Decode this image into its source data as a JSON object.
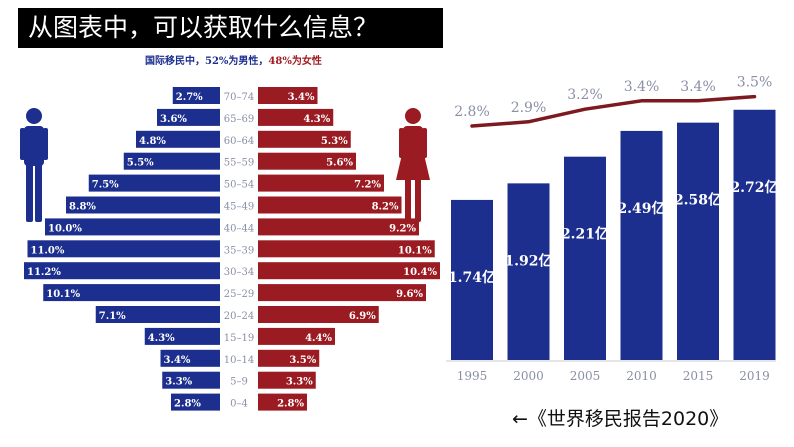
{
  "header": {
    "question": "从图表中，可以获取什么信息？"
  },
  "pyramid_caption": {
    "prefix": "国际移民中，",
    "male_pct": "52%",
    "male_label": "为男性",
    "sep": "，",
    "female_pct": "48%",
    "female_label": "为女性"
  },
  "colors": {
    "male": "#1c2f8e",
    "female": "#9b1b22",
    "line": "#7d1a1f",
    "label_grey": "#8a8fa6"
  },
  "icons": {
    "male": "male-person-icon",
    "female": "female-person-icon"
  },
  "chart_data": [
    {
      "type": "bar",
      "subtype": "population-pyramid",
      "categories": [
        "70–74",
        "65–69",
        "60–64",
        "55–59",
        "50–54",
        "45–49",
        "40–44",
        "35–39",
        "30–34",
        "25–29",
        "20–24",
        "15–19",
        "10–14",
        "5–9",
        "0–4"
      ],
      "series": [
        {
          "name": "男性",
          "labels": [
            "2.7%",
            "3.6%",
            "4.8%",
            "5.5%",
            "7.5%",
            "8.8%",
            "10.0%",
            "11.0%",
            "11.2%",
            "10.1%",
            "7.1%",
            "4.3%",
            "3.4%",
            "3.3%",
            "2.8%"
          ],
          "values": [
            2.7,
            3.6,
            4.8,
            5.5,
            7.5,
            8.8,
            10.0,
            11.0,
            11.2,
            10.1,
            7.1,
            4.3,
            3.4,
            3.3,
            2.8
          ]
        },
        {
          "name": "女性",
          "labels": [
            "3.4%",
            "4.3%",
            "5.3%",
            "5.6%",
            "7.2%",
            "8.2%",
            "9.2%",
            "10.1%",
            "10.4%",
            "9.6%",
            "6.9%",
            "4.4%",
            "3.5%",
            "3.3%",
            "2.8%"
          ],
          "values": [
            3.4,
            4.3,
            5.3,
            5.6,
            7.2,
            8.2,
            9.2,
            10.1,
            10.4,
            9.6,
            6.9,
            4.4,
            3.5,
            3.3,
            2.8
          ]
        }
      ],
      "title": "国际移民中，52%为男性，48%为女性"
    },
    {
      "type": "bar",
      "categories": [
        "1995",
        "2000",
        "2005",
        "2010",
        "2015",
        "2019"
      ],
      "values": [
        1.74,
        1.92,
        2.21,
        2.49,
        2.58,
        2.72
      ],
      "value_labels": [
        "1.74亿",
        "1.92亿",
        "2.21亿",
        "2.49亿",
        "2.58亿",
        "2.72亿"
      ],
      "line_series": {
        "values": [
          2.8,
          2.9,
          3.2,
          3.4,
          3.4,
          3.5
        ],
        "labels": [
          "2.8%",
          "2.9%",
          "3.2%",
          "3.4%",
          "3.4%",
          "3.5%"
        ]
      },
      "ylim": [
        0,
        2.9
      ]
    }
  ],
  "source": {
    "text": "←《世界移民报告2020》"
  }
}
